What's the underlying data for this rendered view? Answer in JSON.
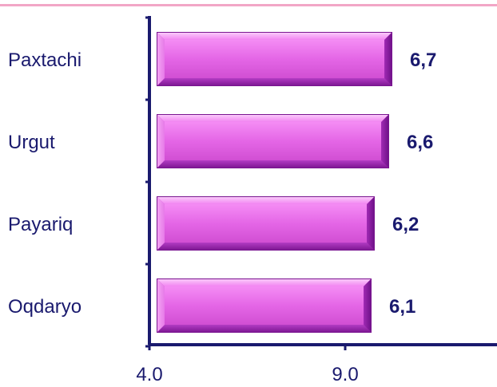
{
  "chart_data": {
    "type": "bar",
    "orientation": "horizontal",
    "categories": [
      "Paxtachi",
      "Urgut",
      "Payariq",
      "Oqdaryo"
    ],
    "values": [
      6.7,
      6.6,
      6.2,
      6.1
    ],
    "value_labels": [
      "6,7",
      "6,6",
      "6,2",
      "6,1"
    ],
    "x_ticks": [
      "4.0",
      "9.0"
    ],
    "colors": {
      "bar_light": "#f590f5",
      "bar_mid": "#d24ad6",
      "bar_dark": "#8a1aa0",
      "axis": "#1a1a6e",
      "text": "#1a1a6e",
      "rule": "#f2a6c6"
    },
    "grid": false,
    "legend": "none"
  }
}
